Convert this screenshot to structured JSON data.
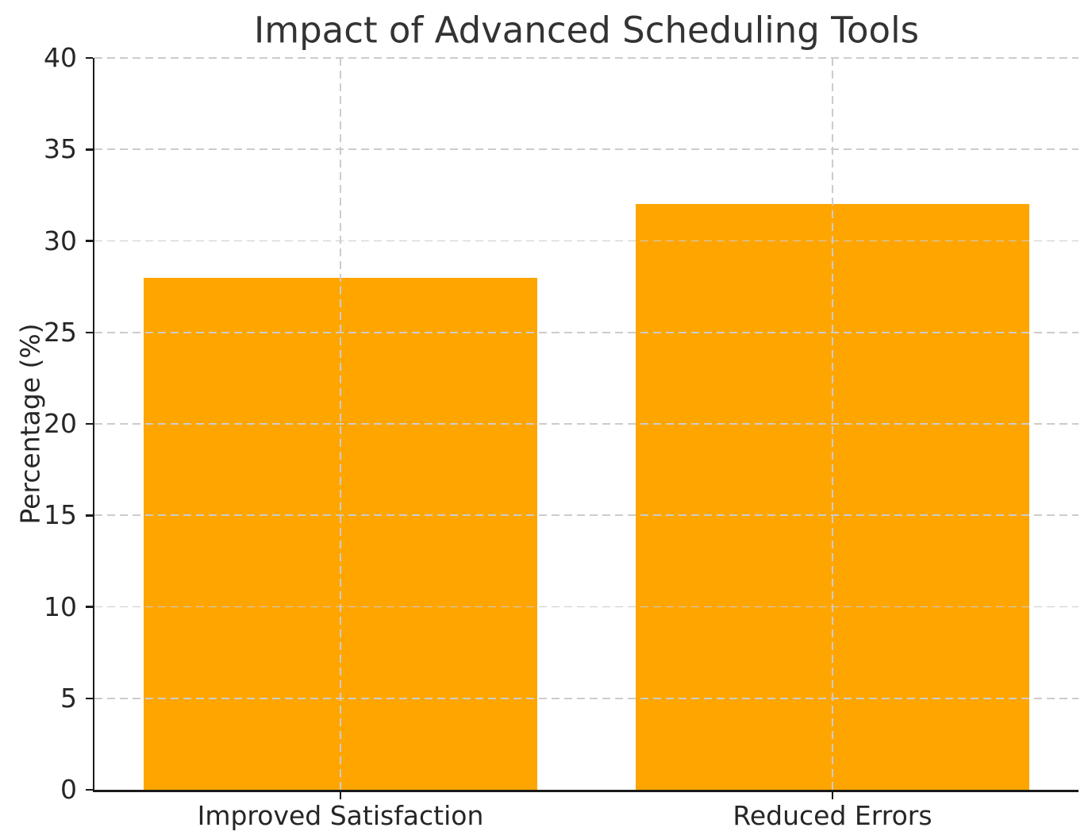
{
  "chart_data": {
    "type": "bar",
    "title": "Impact of Advanced Scheduling Tools",
    "categories": [
      "Improved Satisfaction",
      "Reduced Errors"
    ],
    "values": [
      28,
      32
    ],
    "xlabel": "",
    "ylabel": "Percentage (%)",
    "ylim": [
      0,
      40
    ],
    "yticks": [
      0,
      5,
      10,
      15,
      20,
      25,
      30,
      35,
      40
    ],
    "bar_color": "#FFA500",
    "bar_width_fraction": 0.8,
    "axis_color": "#1a1a1a",
    "text_color": "#262626",
    "title_color": "#333333",
    "grid": {
      "visible": true,
      "style": "dashed",
      "color": "#cccccc",
      "axes": "both",
      "on_top_of_bars": true
    },
    "spines": [
      "left",
      "bottom"
    ]
  }
}
